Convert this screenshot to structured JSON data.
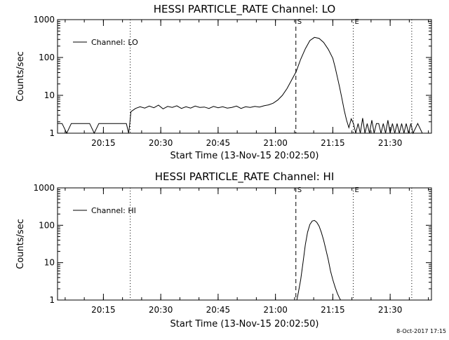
{
  "footer": {
    "timestamp": "8-Oct-2017 17:15"
  },
  "chart_data": [
    {
      "type": "line",
      "title": "HESSI PARTICLE_RATE Channel: LO",
      "xlabel": "Start Time (13-Nov-15 20:02:50)",
      "ylabel": "Counts/sec",
      "yscale": "log",
      "ylim": [
        1,
        1000
      ],
      "xlim_minutes": [
        20.05,
        21.68
      ],
      "x_ticks": [
        {
          "t": 20.25,
          "label": "20:15"
        },
        {
          "t": 20.5,
          "label": "20:30"
        },
        {
          "t": 20.75,
          "label": "20:45"
        },
        {
          "t": 21.0,
          "label": "21:00"
        },
        {
          "t": 21.25,
          "label": "21:15"
        },
        {
          "t": 21.5,
          "label": "21:30"
        }
      ],
      "y_ticks": [
        {
          "v": 1,
          "label": "1"
        },
        {
          "v": 10,
          "label": "10"
        },
        {
          "v": 100,
          "label": "100"
        },
        {
          "v": 1000,
          "label": "1000"
        }
      ],
      "legend": {
        "position": "top-left",
        "label": "Channel: LO"
      },
      "markers": [
        {
          "t": 21.089,
          "style": "dashed",
          "label": "S"
        },
        {
          "t": 21.339,
          "style": "dotted",
          "label": "E"
        },
        {
          "t": 20.367,
          "style": "dotted",
          "label": ""
        },
        {
          "t": 21.594,
          "style": "dotted",
          "label": ""
        }
      ],
      "series": [
        {
          "name": "Channel: LO",
          "x": [
            20.05,
            20.07,
            20.09,
            20.11,
            20.13,
            20.15,
            20.17,
            20.19,
            20.21,
            20.23,
            20.25,
            20.27,
            20.29,
            20.31,
            20.33,
            20.35,
            20.36,
            20.365,
            20.37,
            20.39,
            20.41,
            20.43,
            20.45,
            20.47,
            20.49,
            20.51,
            20.53,
            20.55,
            20.57,
            20.59,
            20.61,
            20.63,
            20.65,
            20.67,
            20.69,
            20.71,
            20.73,
            20.75,
            20.77,
            20.79,
            20.81,
            20.83,
            20.85,
            20.87,
            20.89,
            20.91,
            20.93,
            20.95,
            20.97,
            20.99,
            21.01,
            21.03,
            21.05,
            21.07,
            21.09,
            21.11,
            21.13,
            21.15,
            21.17,
            21.19,
            21.21,
            21.23,
            21.25,
            21.26,
            21.27,
            21.28,
            21.29,
            21.3,
            21.31,
            21.32,
            21.33,
            21.34,
            21.35,
            21.36,
            21.37,
            21.38,
            21.39,
            21.4,
            21.41,
            21.42,
            21.43,
            21.44,
            21.45,
            21.46,
            21.47,
            21.48,
            21.49,
            21.5,
            21.51,
            21.52,
            21.53,
            21.54,
            21.55,
            21.56,
            21.57,
            21.58,
            21.59,
            21.6,
            21.62,
            21.64,
            21.66,
            21.68
          ],
          "y": [
            1.8,
            1.8,
            1,
            1.8,
            1.8,
            1.8,
            1.8,
            1.8,
            1,
            1.8,
            1.8,
            1.8,
            1.8,
            1.8,
            1.8,
            1.8,
            1,
            1.8,
            3.7,
            4.5,
            5,
            4.6,
            5.2,
            4.7,
            5.5,
            4.4,
            5.1,
            4.8,
            5.3,
            4.5,
            5,
            4.6,
            5.2,
            4.8,
            4.9,
            4.5,
            5.1,
            4.7,
            5,
            4.6,
            4.8,
            5.2,
            4.5,
            5,
            4.8,
            5.1,
            4.9,
            5.3,
            5.6,
            6.2,
            7.5,
            10,
            15,
            25,
            42,
            90,
            170,
            280,
            340,
            320,
            250,
            165,
            95,
            55,
            30,
            16,
            8,
            4,
            2.2,
            1.4,
            2.4,
            1.8,
            1,
            1.8,
            1,
            2.5,
            1,
            1.8,
            1,
            2.2,
            1,
            1.8,
            1.8,
            1,
            1.8,
            1,
            2.2,
            1,
            1.8,
            1,
            1.8,
            1,
            1.8,
            1,
            1.8,
            1,
            1.8,
            1,
            1.8,
            1,
            1,
            1
          ]
        }
      ]
    },
    {
      "type": "line",
      "title": "HESSI PARTICLE_RATE Channel: HI",
      "xlabel": "Start Time (13-Nov-15 20:02:50)",
      "ylabel": "Counts/sec",
      "yscale": "log",
      "ylim": [
        1,
        1000
      ],
      "xlim_minutes": [
        20.05,
        21.68
      ],
      "x_ticks": [
        {
          "t": 20.25,
          "label": "20:15"
        },
        {
          "t": 20.5,
          "label": "20:30"
        },
        {
          "t": 20.75,
          "label": "20:45"
        },
        {
          "t": 21.0,
          "label": "21:00"
        },
        {
          "t": 21.25,
          "label": "21:15"
        },
        {
          "t": 21.5,
          "label": "21:30"
        }
      ],
      "y_ticks": [
        {
          "v": 1,
          "label": "1"
        },
        {
          "v": 10,
          "label": "10"
        },
        {
          "v": 100,
          "label": "100"
        },
        {
          "v": 1000,
          "label": "1000"
        }
      ],
      "legend": {
        "position": "top-left",
        "label": "Channel: HI"
      },
      "markers": [
        {
          "t": 21.089,
          "style": "dashed",
          "label": "S"
        },
        {
          "t": 21.339,
          "style": "dotted",
          "label": "E"
        },
        {
          "t": 20.367,
          "style": "dotted",
          "label": ""
        },
        {
          "t": 21.594,
          "style": "dotted",
          "label": ""
        }
      ],
      "series": [
        {
          "name": "Channel: HI",
          "x": [
            21.093,
            21.1,
            21.11,
            21.12,
            21.13,
            21.14,
            21.15,
            21.16,
            21.17,
            21.18,
            21.19,
            21.2,
            21.21,
            21.22,
            21.23,
            21.24,
            21.25,
            21.26,
            21.27,
            21.28,
            21.284
          ],
          "y": [
            1,
            1.6,
            3.5,
            10,
            30,
            65,
            105,
            130,
            135,
            120,
            95,
            65,
            40,
            22,
            12,
            6,
            3.5,
            2.2,
            1.5,
            1.1,
            1
          ]
        }
      ]
    }
  ]
}
